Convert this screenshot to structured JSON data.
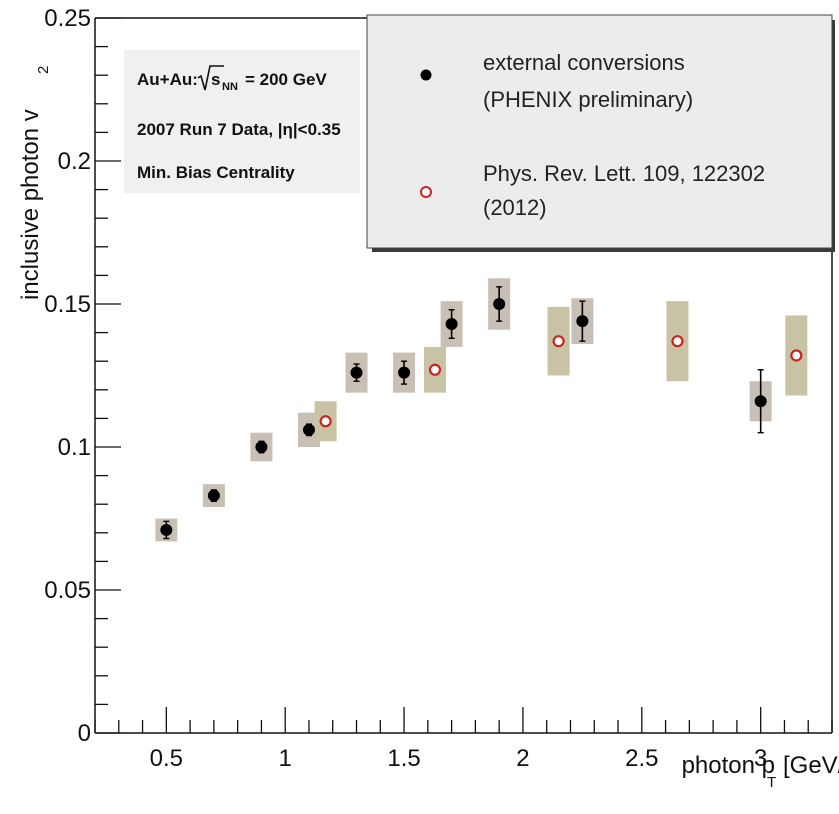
{
  "chart_data": {
    "type": "scatter",
    "xlabel_main": "photon p",
    "xlabel_sub": "T",
    "xlabel_units": "[GeV/c]",
    "ylabel_main": "inclusive photon v",
    "ylabel_sub": "2",
    "xlim": [
      0.2,
      3.3
    ],
    "ylim": [
      0,
      0.25
    ],
    "x_ticks": [
      0.5,
      1,
      1.5,
      2,
      2.5,
      3
    ],
    "x_tick_labels": [
      "0.5",
      "1",
      "1.5",
      "2",
      "2.5",
      "3"
    ],
    "y_ticks": [
      0,
      0.05,
      0.1,
      0.15,
      0.2,
      0.25
    ],
    "y_tick_labels": [
      "0",
      "0.05",
      "0.1",
      "0.15",
      "0.2",
      "0.25"
    ],
    "info_box": {
      "line1_prefix": "Au+Au:",
      "line1_sqrt": "s",
      "line1_sub": "NN",
      "line1_suffix": "= 200 GeV",
      "line2": "2007 Run 7 Data, |η|<0.35",
      "line3": "Min. Bias Centrality"
    },
    "legend": {
      "entry1_line1": "external conversions",
      "entry1_line2": "(PHENIX preliminary)",
      "entry2_line1": "Phys. Rev. Lett. 109, 122302",
      "entry2_line2": "(2012)"
    },
    "series": [
      {
        "name": "external conversions (PHENIX preliminary)",
        "marker": "filled-circle",
        "color": "#000000",
        "syst_color": "#c8c0b4",
        "points": [
          {
            "x": 0.5,
            "y": 0.071,
            "err": 0.003,
            "syst": 0.004
          },
          {
            "x": 0.7,
            "y": 0.083,
            "err": 0.002,
            "syst": 0.004
          },
          {
            "x": 0.9,
            "y": 0.1,
            "err": 0.002,
            "syst": 0.005
          },
          {
            "x": 1.1,
            "y": 0.106,
            "err": 0.002,
            "syst": 0.006
          },
          {
            "x": 1.3,
            "y": 0.126,
            "err": 0.003,
            "syst": 0.007
          },
          {
            "x": 1.5,
            "y": 0.126,
            "err": 0.004,
            "syst": 0.007
          },
          {
            "x": 1.7,
            "y": 0.143,
            "err": 0.005,
            "syst": 0.008
          },
          {
            "x": 1.9,
            "y": 0.15,
            "err": 0.006,
            "syst": 0.009
          },
          {
            "x": 2.25,
            "y": 0.144,
            "err": 0.007,
            "syst": 0.008
          },
          {
            "x": 3.0,
            "y": 0.116,
            "err": 0.011,
            "syst": 0.007
          }
        ]
      },
      {
        "name": "Phys. Rev. Lett. 109, 122302 (2012)",
        "marker": "open-circle",
        "color": "#cc2222",
        "syst_color": "#c9c3a6",
        "points": [
          {
            "x": 1.17,
            "y": 0.109,
            "syst": 0.007
          },
          {
            "x": 1.63,
            "y": 0.127,
            "syst": 0.008
          },
          {
            "x": 2.15,
            "y": 0.137,
            "syst": 0.012
          },
          {
            "x": 2.65,
            "y": 0.137,
            "syst": 0.014
          },
          {
            "x": 3.15,
            "y": 0.132,
            "syst": 0.014
          }
        ]
      }
    ]
  }
}
